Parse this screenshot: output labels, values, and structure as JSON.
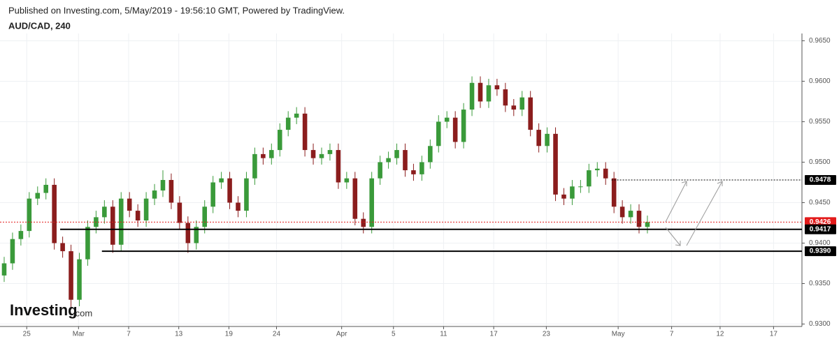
{
  "header": {
    "published": "Published on Investing.com, 5/May/2019 - 19:56:10 GMT, Powered by TradingView.",
    "symbol": "AUD/CAD, 240"
  },
  "logo": {
    "name": "Investing",
    "suffix": ".com"
  },
  "chart_data": {
    "type": "candlestick",
    "x": [
      0.5,
      1.5,
      2.5,
      3.5,
      4.5,
      5.5,
      6.5,
      7.5,
      8.5,
      9.5,
      10.5,
      11.5,
      12.5,
      13.5,
      14.5,
      15.5,
      16.5,
      17.5,
      18.5,
      19.5,
      20.5,
      21.5,
      22.5,
      23.5,
      24.5,
      25.5,
      26.5,
      27.5,
      28.5,
      29.5,
      30.5,
      31.5,
      32.5,
      33.5,
      34.5,
      35.5,
      36.5,
      37.5,
      38.5,
      39.5,
      40.5,
      41.5,
      42.5,
      43.5,
      44.5,
      45.5,
      46.5,
      47.5,
      48.5,
      49.5,
      50.5,
      51.5,
      52.5,
      53.5,
      54.5,
      55.5,
      56.5,
      57.5,
      58.5,
      59.5,
      60.5,
      61.5,
      62.5,
      63.5,
      64.5,
      65.5,
      66.5,
      67.5,
      68.5,
      69.5,
      70.5,
      71.5,
      72.5,
      73.5,
      74.5,
      75.5,
      76.5,
      77.5
    ],
    "open": [
      0.936,
      0.9375,
      0.9405,
      0.9415,
      0.9455,
      0.9462,
      0.9472,
      0.94,
      0.939,
      0.933,
      0.938,
      0.942,
      0.9432,
      0.9445,
      0.9398,
      0.9455,
      0.944,
      0.9428,
      0.9455,
      0.9465,
      0.9478,
      0.945,
      0.9425,
      0.94,
      0.942,
      0.9445,
      0.9475,
      0.948,
      0.945,
      0.944,
      0.948,
      0.951,
      0.9505,
      0.9515,
      0.954,
      0.9555,
      0.956,
      0.9515,
      0.9505,
      0.951,
      0.9515,
      0.9475,
      0.948,
      0.943,
      0.942,
      0.948,
      0.95,
      0.9505,
      0.9515,
      0.949,
      0.9485,
      0.95,
      0.952,
      0.955,
      0.9555,
      0.9525,
      0.9565,
      0.9598,
      0.9575,
      0.9595,
      0.959,
      0.957,
      0.9565,
      0.958,
      0.954,
      0.952,
      0.9535,
      0.946,
      0.9455,
      0.947,
      0.947,
      0.949,
      0.9492,
      0.948,
      0.9445,
      0.9432,
      0.944,
      0.942
    ],
    "high": [
      0.9383,
      0.9413,
      0.9423,
      0.9463,
      0.947,
      0.948,
      0.948,
      0.9408,
      0.9398,
      0.9388,
      0.9428,
      0.944,
      0.9453,
      0.9453,
      0.9463,
      0.9463,
      0.9448,
      0.9463,
      0.9473,
      0.949,
      0.9486,
      0.9458,
      0.9433,
      0.9428,
      0.9453,
      0.9483,
      0.9488,
      0.9488,
      0.9458,
      0.9488,
      0.9518,
      0.9518,
      0.9523,
      0.9548,
      0.9563,
      0.9568,
      0.9568,
      0.9523,
      0.9518,
      0.9523,
      0.9523,
      0.9488,
      0.9488,
      0.9438,
      0.9488,
      0.9508,
      0.9513,
      0.9523,
      0.9523,
      0.9498,
      0.9508,
      0.9528,
      0.9558,
      0.9563,
      0.9563,
      0.9573,
      0.9606,
      0.9606,
      0.9603,
      0.9603,
      0.9598,
      0.9578,
      0.9588,
      0.9588,
      0.9548,
      0.9543,
      0.9543,
      0.9468,
      0.9478,
      0.9478,
      0.9498,
      0.95,
      0.95,
      0.9488,
      0.9453,
      0.9448,
      0.9448,
      0.9434
    ],
    "low": [
      0.9352,
      0.9367,
      0.9397,
      0.9407,
      0.9447,
      0.9454,
      0.9392,
      0.9382,
      0.9318,
      0.9322,
      0.9372,
      0.9412,
      0.9424,
      0.9388,
      0.939,
      0.9432,
      0.942,
      0.942,
      0.9447,
      0.9457,
      0.9442,
      0.9417,
      0.9388,
      0.9392,
      0.9412,
      0.9437,
      0.9467,
      0.9442,
      0.9432,
      0.9432,
      0.9472,
      0.9497,
      0.9497,
      0.9507,
      0.9532,
      0.9547,
      0.9507,
      0.9497,
      0.9497,
      0.9502,
      0.9467,
      0.9467,
      0.9422,
      0.9412,
      0.9412,
      0.9472,
      0.9492,
      0.9497,
      0.9482,
      0.9477,
      0.9477,
      0.9492,
      0.9512,
      0.9542,
      0.9517,
      0.9517,
      0.9557,
      0.9567,
      0.9567,
      0.9582,
      0.9562,
      0.9557,
      0.9557,
      0.9532,
      0.9512,
      0.9512,
      0.9452,
      0.9447,
      0.9447,
      0.9462,
      0.9462,
      0.9482,
      0.9472,
      0.9437,
      0.9424,
      0.9424,
      0.9412,
      0.9412
    ],
    "close": [
      0.9375,
      0.9405,
      0.9415,
      0.9455,
      0.9462,
      0.9472,
      0.94,
      0.939,
      0.933,
      0.938,
      0.942,
      0.9432,
      0.9445,
      0.9398,
      0.9455,
      0.944,
      0.9428,
      0.9455,
      0.9465,
      0.9478,
      0.945,
      0.9425,
      0.94,
      0.942,
      0.9445,
      0.9475,
      0.948,
      0.945,
      0.944,
      0.948,
      0.951,
      0.9505,
      0.9515,
      0.954,
      0.9555,
      0.956,
      0.9515,
      0.9505,
      0.951,
      0.9515,
      0.9475,
      0.948,
      0.943,
      0.942,
      0.948,
      0.95,
      0.9505,
      0.9515,
      0.949,
      0.9485,
      0.95,
      0.952,
      0.955,
      0.9555,
      0.9525,
      0.9565,
      0.9598,
      0.9575,
      0.9595,
      0.959,
      0.957,
      0.9565,
      0.958,
      0.954,
      0.952,
      0.9535,
      0.946,
      0.9455,
      0.947,
      0.947,
      0.949,
      0.9492,
      0.948,
      0.9445,
      0.9432,
      0.944,
      0.942,
      0.9426
    ],
    "up_color": "#3a9a3a",
    "down_color": "#8b1d1d",
    "xlim": [
      0,
      96
    ],
    "ylim": [
      0.9297,
      0.9659
    ],
    "xticks": [
      {
        "value": 3.2,
        "label": "25"
      },
      {
        "value": 9.4,
        "label": "Mar"
      },
      {
        "value": 15.4,
        "label": "7"
      },
      {
        "value": 21.4,
        "label": "13"
      },
      {
        "value": 27.4,
        "label": "19"
      },
      {
        "value": 33.1,
        "label": "24"
      },
      {
        "value": 40.9,
        "label": "Apr"
      },
      {
        "value": 47.1,
        "label": "5"
      },
      {
        "value": 53.1,
        "label": "11"
      },
      {
        "value": 59.1,
        "label": "17"
      },
      {
        "value": 65.4,
        "label": "23"
      },
      {
        "value": 74.0,
        "label": "May"
      },
      {
        "value": 80.4,
        "label": "7"
      },
      {
        "value": 86.2,
        "label": "12"
      },
      {
        "value": 92.6,
        "label": "17"
      }
    ],
    "yticks": [
      {
        "value": 0.93,
        "label": "0.9300"
      },
      {
        "value": 0.935,
        "label": "0.9350"
      },
      {
        "value": 0.94,
        "label": "0.9400"
      },
      {
        "value": 0.945,
        "label": "0.9450"
      },
      {
        "value": 0.95,
        "label": "0.9500"
      },
      {
        "value": 0.955,
        "label": "0.9550"
      },
      {
        "value": 0.96,
        "label": "0.9600"
      },
      {
        "value": 0.965,
        "label": "0.9650"
      }
    ],
    "grid": true,
    "levels": [
      {
        "value": 0.9478,
        "label": "0.9478",
        "from": 73.2,
        "style": "dotted",
        "color": "#000000"
      },
      {
        "value": 0.9426,
        "label": "0.9426",
        "from": 0,
        "style": "dotted",
        "color": "#e31b1b"
      },
      {
        "value": 0.9417,
        "label": "0.9417",
        "from": 7.2,
        "style": "solid",
        "color": "#000000"
      },
      {
        "value": 0.939,
        "label": "0.9390",
        "from": 12.2,
        "style": "solid",
        "color": "#000000"
      }
    ]
  }
}
